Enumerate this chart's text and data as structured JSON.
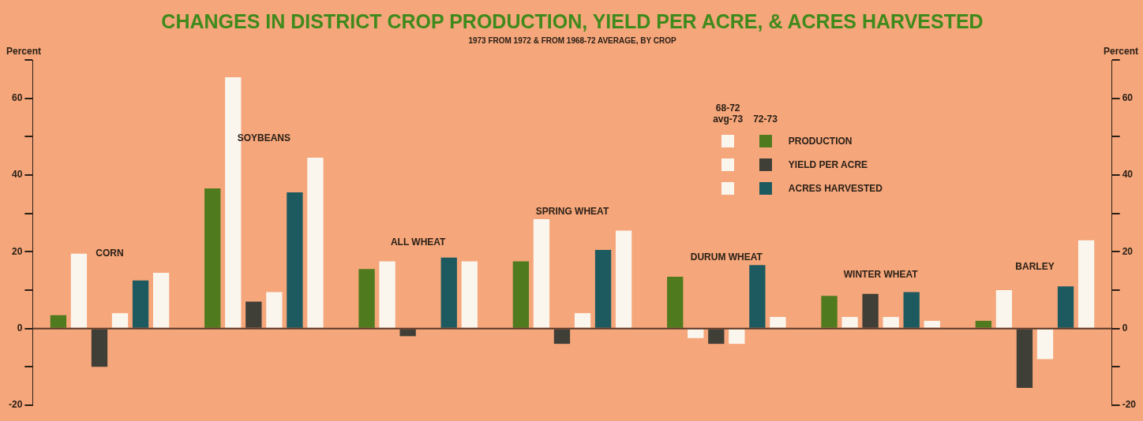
{
  "chart_data": {
    "type": "bar",
    "title": "CHANGES IN DISTRICT CROP PRODUCTION, YIELD PER ACRE, & ACRES HARVESTED",
    "subtitle": "1973 FROM 1972 & FROM 1968-72 AVERAGE, BY CROP",
    "ylabel": "Percent",
    "y2label": "Percent",
    "categories": [
      "CORN",
      "SOYBEANS",
      "ALL WHEAT",
      "SPRING WHEAT",
      "DURUM WHEAT",
      "WINTER WHEAT",
      "BARLEY"
    ],
    "series": [
      {
        "name": "PRODUCTION",
        "color": "#4f7a1e",
        "values": [
          3.5,
          36.5,
          15.5,
          17.5,
          13.5,
          8.5,
          2
        ]
      },
      {
        "color": "#faf6ee",
        "values": [
          19.5,
          65.5,
          17.5,
          28.5,
          -2.5,
          3,
          10
        ]
      },
      {
        "name": "YIELD PER ACRE",
        "color": "#3f3f38",
        "values": [
          -10,
          7,
          -2,
          -4,
          -4,
          9,
          -15.5
        ]
      },
      {
        "color": "#faf6ee",
        "values": [
          4,
          9.5,
          null,
          4,
          -4,
          3,
          -8
        ]
      },
      {
        "name": "ACRES HARVESTED",
        "color": "#1d5a60",
        "values": [
          12.5,
          35.5,
          18.5,
          20.5,
          16.5,
          9.5,
          11
        ]
      },
      {
        "color": "#faf6ee",
        "values": [
          14.5,
          44.5,
          17.5,
          25.5,
          3,
          2,
          23
        ]
      }
    ],
    "ylim": [
      -20,
      70
    ],
    "yticks": [
      {
        "value": -20,
        "label": "-20"
      },
      {
        "value": -10,
        "label": null
      },
      0,
      {
        "value": 10,
        "label": null
      },
      20,
      {
        "value": 30,
        "label": null
      },
      40,
      {
        "value": 50,
        "label": null
      },
      60,
      {
        "value": 70,
        "label": null
      }
    ],
    "y2lim": [
      -20,
      70
    ],
    "y2ticks": [
      {
        "value": -20,
        "label": "-20"
      },
      {
        "value": -10,
        "label": null
      },
      0,
      {
        "value": 10,
        "label": null
      },
      20,
      {
        "value": 30,
        "label": null
      },
      40,
      {
        "value": 50,
        "label": null
      },
      60,
      {
        "value": 70,
        "label": null
      }
    ],
    "ref_lines": [
      {
        "axis": "y",
        "value": 0,
        "color": "#5a3a2a"
      }
    ],
    "annotations": [
      "72-73",
      "68-72 avg-73"
    ],
    "legend": "top right",
    "grid": false
  }
}
